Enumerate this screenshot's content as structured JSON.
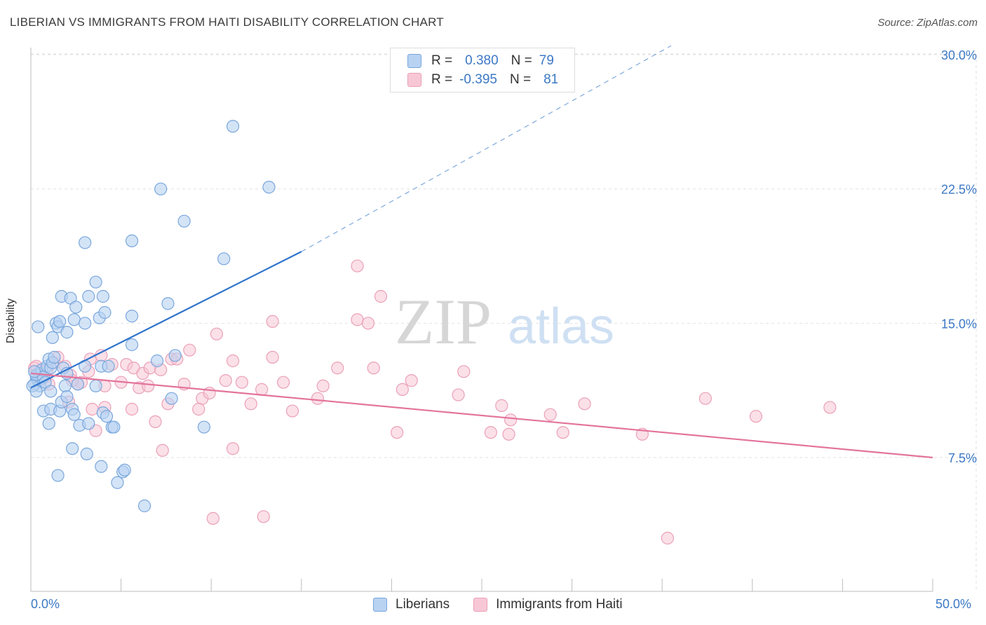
{
  "title": "LIBERIAN VS IMMIGRANTS FROM HAITI DISABILITY CORRELATION CHART",
  "source": "Source: ZipAtlas.com",
  "watermark": {
    "zip": "ZIP",
    "atlas": "atlas"
  },
  "legend_top": {
    "series1": {
      "r_label": "R =",
      "r_value": "0.380",
      "n_label": "N =",
      "n_value": "79"
    },
    "series2": {
      "r_label": "R =",
      "r_value": "-0.395",
      "n_label": "N =",
      "n_value": "81"
    }
  },
  "legend_bottom": {
    "series1": "Liberians",
    "series2": "Immigrants from Haiti"
  },
  "colors": {
    "blue_fill": "#b8d2f2",
    "blue_stroke": "#7aa7dc",
    "blue_line": "#2f74cc",
    "pink_fill": "#f8c7d6",
    "pink_stroke": "#eba0b8",
    "pink_line": "#e3749c",
    "tick_text": "#3b78c4",
    "grid": "#e2e2e2"
  },
  "chart_data": {
    "type": "scatter",
    "title": "LIBERIAN VS IMMIGRANTS FROM HAITI DISABILITY CORRELATION CHART",
    "xlabel": "",
    "ylabel": "Disability",
    "xlim": [
      0,
      50
    ],
    "ylim": [
      0,
      31
    ],
    "x_tick_labels": [
      "0.0%",
      "50.0%"
    ],
    "y_ticks": [
      7.5,
      15.0,
      22.5,
      30.0
    ],
    "y_tick_labels": [
      "7.5%",
      "15.0%",
      "22.5%",
      "30.0%"
    ],
    "grid": true,
    "legend_position": "top-center",
    "series": [
      {
        "name": "Liberians",
        "r": 0.38,
        "n": 79,
        "trend": {
          "x": [
            0,
            15
          ],
          "y": [
            11.4,
            19.0
          ],
          "dashed_to": [
            35.5,
            30.5
          ]
        },
        "points": [
          [
            0.2,
            11.6
          ],
          [
            0.3,
            12.0
          ],
          [
            0.4,
            11.8
          ],
          [
            0.5,
            12.2
          ],
          [
            0.6,
            11.9
          ],
          [
            0.3,
            12.1
          ],
          [
            0.5,
            11.5
          ],
          [
            0.6,
            12.4
          ],
          [
            0.7,
            12.0
          ],
          [
            0.8,
            11.7
          ],
          [
            0.9,
            12.6
          ],
          [
            1.0,
            13.0
          ],
          [
            1.1,
            12.5
          ],
          [
            1.2,
            12.8
          ],
          [
            1.3,
            13.1
          ],
          [
            0.4,
            14.8
          ],
          [
            1.2,
            14.2
          ],
          [
            1.4,
            15.0
          ],
          [
            1.5,
            14.8
          ],
          [
            1.6,
            15.1
          ],
          [
            2.0,
            14.5
          ],
          [
            1.7,
            16.5
          ],
          [
            2.2,
            16.4
          ],
          [
            2.4,
            15.2
          ],
          [
            2.5,
            15.9
          ],
          [
            3.0,
            15.0
          ],
          [
            3.2,
            16.5
          ],
          [
            3.6,
            17.3
          ],
          [
            3.8,
            15.3
          ],
          [
            4.0,
            16.5
          ],
          [
            4.1,
            15.6
          ],
          [
            1.8,
            12.5
          ],
          [
            1.9,
            11.5
          ],
          [
            2.0,
            12.2
          ],
          [
            2.6,
            11.6
          ],
          [
            3.0,
            12.6
          ],
          [
            3.9,
            12.6
          ],
          [
            3.6,
            11.5
          ],
          [
            4.3,
            12.6
          ],
          [
            1.1,
            11.2
          ],
          [
            0.7,
            10.1
          ],
          [
            1.0,
            9.4
          ],
          [
            1.1,
            10.2
          ],
          [
            1.6,
            10.1
          ],
          [
            1.7,
            10.6
          ],
          [
            2.0,
            10.9
          ],
          [
            2.3,
            10.2
          ],
          [
            2.4,
            9.9
          ],
          [
            2.7,
            9.3
          ],
          [
            3.2,
            9.4
          ],
          [
            4.0,
            10.0
          ],
          [
            4.2,
            9.8
          ],
          [
            4.5,
            9.2
          ],
          [
            4.6,
            9.2
          ],
          [
            2.3,
            8.0
          ],
          [
            3.1,
            7.7
          ],
          [
            3.9,
            7.0
          ],
          [
            5.1,
            6.7
          ],
          [
            5.2,
            6.8
          ],
          [
            1.5,
            6.5
          ],
          [
            4.8,
            6.1
          ],
          [
            6.3,
            4.8
          ],
          [
            3.0,
            19.5
          ],
          [
            5.6,
            19.6
          ],
          [
            7.2,
            22.5
          ],
          [
            8.5,
            20.7
          ],
          [
            11.2,
            26.0
          ],
          [
            13.2,
            22.6
          ],
          [
            10.7,
            18.6
          ],
          [
            7.6,
            16.1
          ],
          [
            5.6,
            15.4
          ],
          [
            5.6,
            13.8
          ],
          [
            7.0,
            12.9
          ],
          [
            8.0,
            13.2
          ],
          [
            7.8,
            10.8
          ],
          [
            9.6,
            9.2
          ],
          [
            0.1,
            11.5
          ],
          [
            0.2,
            12.3
          ],
          [
            0.3,
            11.2
          ]
        ]
      },
      {
        "name": "Immigrants from Haiti",
        "r": -0.395,
        "n": 81,
        "trend": {
          "x": [
            0,
            50
          ],
          "y": [
            12.2,
            7.5
          ]
        },
        "points": [
          [
            0.2,
            12.5
          ],
          [
            0.4,
            12.2
          ],
          [
            0.6,
            12.3
          ],
          [
            0.8,
            12.0
          ],
          [
            1.0,
            11.6
          ],
          [
            0.3,
            12.6
          ],
          [
            0.5,
            11.9
          ],
          [
            0.9,
            12.4
          ],
          [
            1.3,
            12.8
          ],
          [
            1.5,
            13.1
          ],
          [
            1.9,
            12.6
          ],
          [
            2.2,
            12.1
          ],
          [
            2.8,
            11.7
          ],
          [
            3.2,
            12.3
          ],
          [
            3.3,
            13.0
          ],
          [
            3.9,
            13.2
          ],
          [
            4.1,
            11.5
          ],
          [
            4.5,
            12.7
          ],
          [
            5.0,
            11.7
          ],
          [
            5.3,
            12.7
          ],
          [
            5.7,
            12.5
          ],
          [
            6.0,
            11.4
          ],
          [
            6.2,
            12.2
          ],
          [
            6.6,
            12.5
          ],
          [
            6.5,
            11.5
          ],
          [
            7.2,
            12.4
          ],
          [
            7.8,
            13.0
          ],
          [
            8.1,
            13.0
          ],
          [
            8.5,
            11.6
          ],
          [
            8.8,
            13.5
          ],
          [
            9.5,
            10.8
          ],
          [
            9.9,
            11.1
          ],
          [
            10.3,
            14.4
          ],
          [
            10.8,
            11.8
          ],
          [
            11.2,
            12.9
          ],
          [
            11.7,
            11.7
          ],
          [
            12.2,
            10.5
          ],
          [
            12.8,
            11.3
          ],
          [
            13.4,
            13.1
          ],
          [
            14.0,
            11.7
          ],
          [
            14.5,
            10.1
          ],
          [
            15.9,
            10.8
          ],
          [
            16.2,
            11.5
          ],
          [
            17.0,
            12.5
          ],
          [
            18.1,
            18.2
          ],
          [
            18.1,
            15.2
          ],
          [
            18.7,
            15.0
          ],
          [
            19.4,
            16.5
          ],
          [
            19.0,
            12.5
          ],
          [
            20.3,
            8.9
          ],
          [
            20.6,
            11.3
          ],
          [
            21.1,
            11.8
          ],
          [
            23.7,
            11.0
          ],
          [
            24.0,
            12.3
          ],
          [
            25.5,
            8.9
          ],
          [
            26.5,
            8.8
          ],
          [
            26.6,
            9.6
          ],
          [
            26.1,
            10.4
          ],
          [
            28.8,
            9.9
          ],
          [
            29.5,
            8.9
          ],
          [
            30.7,
            10.5
          ],
          [
            33.9,
            8.8
          ],
          [
            37.4,
            10.8
          ],
          [
            40.2,
            9.8
          ],
          [
            44.3,
            10.3
          ],
          [
            35.3,
            3.0
          ],
          [
            12.9,
            4.2
          ],
          [
            10.1,
            4.1
          ],
          [
            7.3,
            7.9
          ],
          [
            11.2,
            8.0
          ],
          [
            5.6,
            10.2
          ],
          [
            6.9,
            9.5
          ],
          [
            7.6,
            10.5
          ],
          [
            3.4,
            10.2
          ],
          [
            4.1,
            10.3
          ],
          [
            2.1,
            10.6
          ],
          [
            2.6,
            11.6
          ],
          [
            2.3,
            11.8
          ],
          [
            3.6,
            9.0
          ],
          [
            9.3,
            10.2
          ],
          [
            13.4,
            15.1
          ]
        ]
      }
    ]
  }
}
